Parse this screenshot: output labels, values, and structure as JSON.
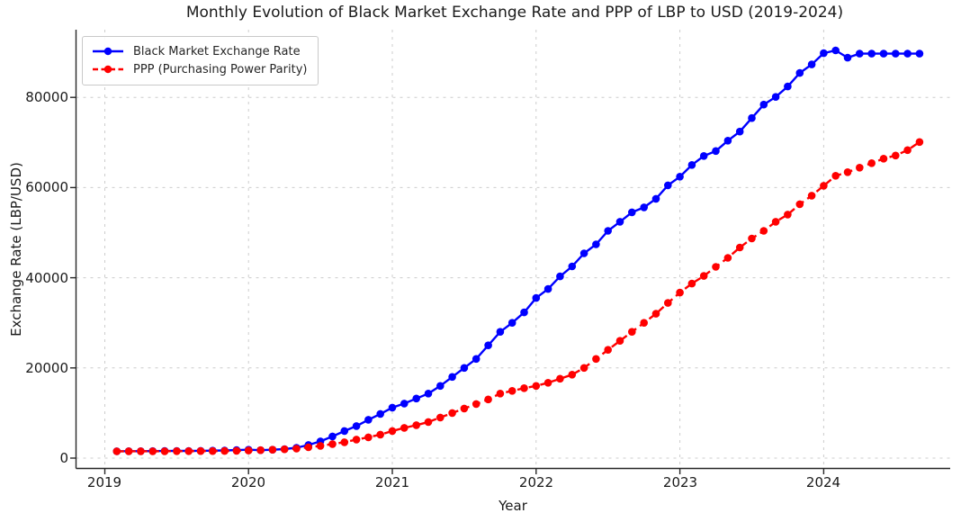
{
  "chart_data": {
    "type": "line",
    "title": "Monthly Evolution of Black Market Exchange Rate and PPP of LBP to USD (2019-2024)",
    "xlabel": "Year",
    "ylabel": "Exchange Rate (LBP/USD)",
    "x_start": "2019-01",
    "x_end": "2024-08",
    "x_frequency": "monthly",
    "x_ticks": [
      "2019",
      "2020",
      "2021",
      "2022",
      "2023",
      "2024"
    ],
    "y_ticks": [
      "0",
      "20000",
      "40000",
      "60000",
      "80000"
    ],
    "xlim": [
      2018.8,
      2024.88
    ],
    "ylim": [
      -2300,
      95000
    ],
    "grid": true,
    "grid_style": "dashed",
    "grid_color": "#cccccc",
    "spine_color": "#262626",
    "legend_position": "upper-left",
    "series": [
      {
        "name": "Black Market Exchange Rate",
        "color": "#0000ff",
        "line_style": "solid",
        "marker": "circle",
        "values": [
          1520,
          1530,
          1540,
          1550,
          1570,
          1590,
          1600,
          1620,
          1650,
          1700,
          1780,
          1850,
          1750,
          1850,
          2000,
          2300,
          2900,
          3700,
          4800,
          6000,
          7100,
          8500,
          9800,
          11200,
          12100,
          13200,
          14300,
          16000,
          18000,
          20000,
          22000,
          25000,
          28000,
          30000,
          32300,
          35500,
          37500,
          40300,
          42500,
          45400,
          47400,
          50400,
          52400,
          54500,
          55600,
          57500,
          60500,
          62400,
          65000,
          67000,
          68100,
          70400,
          72400,
          75400,
          78400,
          80100,
          82400,
          85400,
          87300,
          89800,
          90400,
          88800,
          89700,
          89700,
          89700,
          89700,
          89700,
          89700
        ]
      },
      {
        "name": "PPP (Purchasing Power Parity)",
        "color": "#ff0000",
        "line_style": "dashed",
        "marker": "circle",
        "values": [
          1500,
          1505,
          1510,
          1515,
          1520,
          1530,
          1540,
          1550,
          1560,
          1580,
          1620,
          1680,
          1750,
          1850,
          1950,
          2100,
          2400,
          2700,
          3100,
          3500,
          4100,
          4600,
          5200,
          6000,
          6700,
          7300,
          8000,
          9000,
          10000,
          11000,
          12000,
          13000,
          14300,
          14900,
          15500,
          16000,
          16700,
          17600,
          18500,
          20000,
          22000,
          24000,
          26000,
          28000,
          30000,
          32000,
          34400,
          36700,
          38700,
          40400,
          42400,
          44400,
          46700,
          48700,
          50400,
          52400,
          54000,
          56300,
          58200,
          60400,
          62600,
          63400,
          64400,
          65400,
          66400,
          67100,
          68300,
          70100
        ]
      }
    ]
  }
}
